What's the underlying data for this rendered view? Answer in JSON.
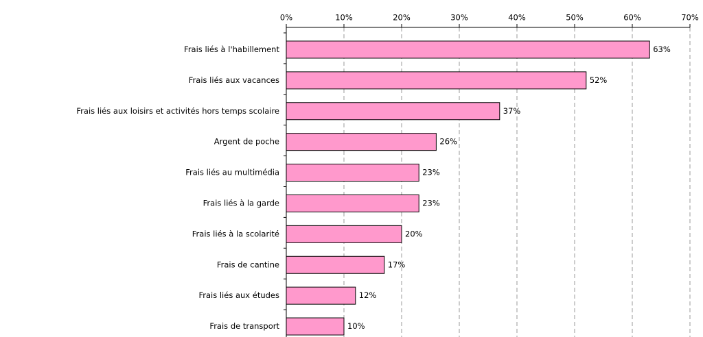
{
  "chart_data": {
    "type": "bar",
    "orientation": "horizontal",
    "categories": [
      "Frais liés à l'habillement",
      "Frais liés aux vacances",
      "Frais liés aux loisirs et activités hors temps scolaire",
      "Argent de poche",
      "Frais liés au multimédia",
      "Frais liés à la garde",
      "Frais liés à la scolarité",
      "Frais de cantine",
      "Frais liés aux études",
      "Frais de transport"
    ],
    "values": [
      63,
      52,
      37,
      26,
      23,
      23,
      20,
      17,
      12,
      10
    ],
    "value_labels": [
      "63%",
      "52%",
      "37%",
      "26%",
      "23%",
      "23%",
      "20%",
      "17%",
      "12%",
      "10%"
    ],
    "color": "#ff99cc",
    "xlim": [
      0,
      70
    ],
    "xticks": [
      {
        "value": 0,
        "label": "0%"
      },
      {
        "value": 10,
        "label": "10%"
      },
      {
        "value": 20,
        "label": "20%"
      },
      {
        "value": 30,
        "label": "30%"
      },
      {
        "value": 40,
        "label": "40%"
      },
      {
        "value": 50,
        "label": "50%"
      },
      {
        "value": 60,
        "label": "60%"
      },
      {
        "value": 70,
        "label": "70%"
      }
    ],
    "grid": true
  }
}
